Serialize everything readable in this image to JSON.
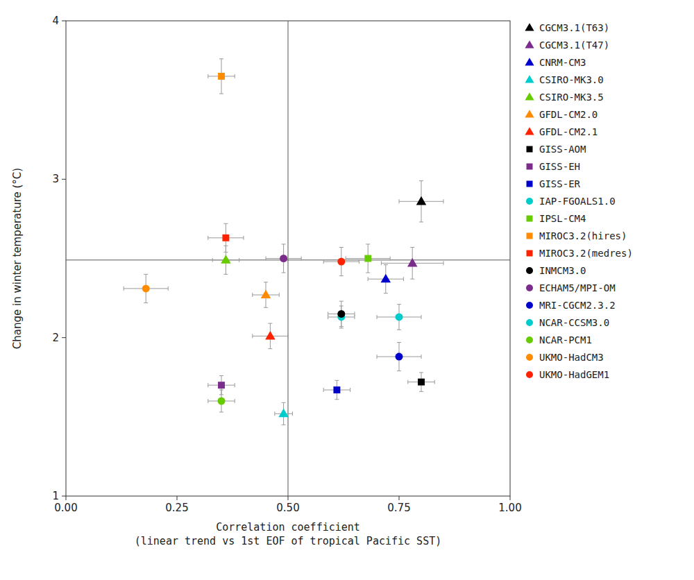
{
  "chart_data": {
    "type": "scatter",
    "xlabel": "Correlation coefficient\n(linear trend vs 1st EOF of tropical Pacific SST)",
    "ylabel": "Change in winter temperature (°C)",
    "xlim": [
      0.0,
      1.0
    ],
    "ylim": [
      1.0,
      4.0
    ],
    "xticks": [
      {
        "value": 0,
        "label": "0.00"
      },
      0.25,
      {
        "value": 0.5,
        "label": "0.50"
      },
      0.75,
      {
        "value": 1,
        "label": "1.00"
      }
    ],
    "yticks": [
      1,
      2,
      3,
      4
    ],
    "grid": false,
    "legend": "right",
    "hline_y": 2.49,
    "vline_x": 0.5,
    "series": [
      {
        "name": "CGCM3.1(T63)",
        "marker": "triangle",
        "color": "#000000",
        "x": [
          0.8
        ],
        "values": [
          2.86
        ],
        "xerr": [
          0.05
        ],
        "yerr": [
          0.13
        ]
      },
      {
        "name": "CGCM3.1(T47)",
        "marker": "triangle",
        "color": "#7B2D8B",
        "x": [
          0.78
        ],
        "values": [
          2.47
        ],
        "xerr": [
          0.07
        ],
        "yerr": [
          0.1
        ]
      },
      {
        "name": "CNRM-CM3",
        "marker": "triangle",
        "color": "#0000CC",
        "x": [
          0.72
        ],
        "values": [
          2.37
        ],
        "xerr": [
          0.04
        ],
        "yerr": [
          0.09
        ]
      },
      {
        "name": "CSIRO-MK3.0",
        "marker": "triangle",
        "color": "#00CCCC",
        "x": [
          0.49
        ],
        "values": [
          1.52
        ],
        "xerr": [
          0.02
        ],
        "yerr": [
          0.07
        ]
      },
      {
        "name": "CSIRO-MK3.5",
        "marker": "triangle",
        "color": "#66CC00",
        "x": [
          0.36
        ],
        "values": [
          2.49
        ],
        "xerr": [
          0.03
        ],
        "yerr": [
          0.09
        ]
      },
      {
        "name": "GFDL-CM2.0",
        "marker": "triangle",
        "color": "#FF8C00",
        "x": [
          0.45
        ],
        "values": [
          2.27
        ],
        "xerr": [
          0.03
        ],
        "yerr": [
          0.08
        ]
      },
      {
        "name": "GFDL-CM2.1",
        "marker": "triangle",
        "color": "#FF2200",
        "x": [
          0.46
        ],
        "values": [
          2.01
        ],
        "xerr": [
          0.04
        ],
        "yerr": [
          0.08
        ]
      },
      {
        "name": "GISS-AOM",
        "marker": "square",
        "color": "#000000",
        "x": [
          0.8
        ],
        "values": [
          1.72
        ],
        "xerr": [
          0.03
        ],
        "yerr": [
          0.06
        ]
      },
      {
        "name": "GISS-EH",
        "marker": "square",
        "color": "#7B2D8B",
        "x": [
          0.35
        ],
        "values": [
          1.7
        ],
        "xerr": [
          0.03
        ],
        "yerr": [
          0.06
        ]
      },
      {
        "name": "GISS-ER",
        "marker": "square",
        "color": "#0000CC",
        "x": [
          0.61
        ],
        "values": [
          1.67
        ],
        "xerr": [
          0.03
        ],
        "yerr": [
          0.06
        ]
      },
      {
        "name": "IAP-FGOALS1.0",
        "marker": "circle",
        "color": "#00CCCC",
        "x": [
          0.62
        ],
        "values": [
          2.13
        ],
        "xerr": [
          0.03
        ],
        "yerr": [
          0.07
        ]
      },
      {
        "name": "IPSL-CM4",
        "marker": "square",
        "color": "#66CC00",
        "x": [
          0.68
        ],
        "values": [
          2.5
        ],
        "xerr": [
          0.05
        ],
        "yerr": [
          0.09
        ]
      },
      {
        "name": "MIROC3.2(hires)",
        "marker": "square",
        "color": "#FF8C00",
        "x": [
          0.35
        ],
        "values": [
          3.65
        ],
        "xerr": [
          0.03
        ],
        "yerr": [
          0.11
        ]
      },
      {
        "name": "MIROC3.2(medres)",
        "marker": "square",
        "color": "#FF2200",
        "x": [
          0.36
        ],
        "values": [
          2.63
        ],
        "xerr": [
          0.04
        ],
        "yerr": [
          0.09
        ]
      },
      {
        "name": "INMCM3.0",
        "marker": "circle",
        "color": "#000000",
        "x": [
          0.62
        ],
        "values": [
          2.15
        ],
        "xerr": [
          0.03
        ],
        "yerr": [
          0.08
        ]
      },
      {
        "name": "ECHAM5/MPI-OM",
        "marker": "circle",
        "color": "#7B2D8B",
        "x": [
          0.49
        ],
        "values": [
          2.5
        ],
        "xerr": [
          0.04
        ],
        "yerr": [
          0.09
        ]
      },
      {
        "name": "MRI-CGCM2.3.2",
        "marker": "circle",
        "color": "#0000CC",
        "x": [
          0.75
        ],
        "values": [
          1.88
        ],
        "xerr": [
          0.05
        ],
        "yerr": [
          0.09
        ]
      },
      {
        "name": "NCAR-CCSM3.0",
        "marker": "circle",
        "color": "#00CCCC",
        "x": [
          0.75
        ],
        "values": [
          2.13
        ],
        "xerr": [
          0.05
        ],
        "yerr": [
          0.08
        ]
      },
      {
        "name": "NCAR-PCM1",
        "marker": "circle",
        "color": "#66CC00",
        "x": [
          0.35
        ],
        "values": [
          1.6
        ],
        "xerr": [
          0.03
        ],
        "yerr": [
          0.07
        ]
      },
      {
        "name": "UKMO-HadCM3",
        "marker": "circle",
        "color": "#FF8C00",
        "x": [
          0.18
        ],
        "values": [
          2.31
        ],
        "xerr": [
          0.05
        ],
        "yerr": [
          0.09
        ]
      },
      {
        "name": "UKMO-HadGEM1",
        "marker": "circle",
        "color": "#FF2200",
        "x": [
          0.62
        ],
        "values": [
          2.48
        ],
        "xerr": [
          0.04
        ],
        "yerr": [
          0.09
        ]
      }
    ]
  }
}
